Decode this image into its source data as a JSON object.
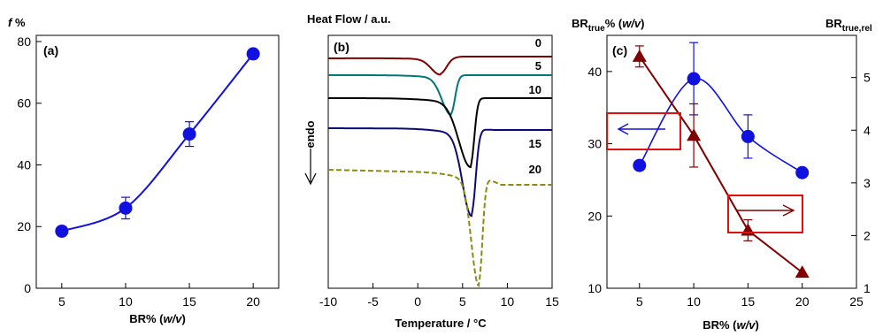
{
  "chart_data": [
    {
      "type": "line",
      "panel_label": "(a)",
      "ylabel_italic": "f",
      "ylabel_rest": " %",
      "xlabel_pre": "BR% (",
      "xlabel_it": "w/v",
      "xlabel_post": ")",
      "xlim": [
        3,
        22
      ],
      "ylim": [
        0,
        82
      ],
      "xticks": [
        5,
        10,
        15,
        20
      ],
      "yticks": [
        0,
        20,
        40,
        60,
        80
      ],
      "series": [
        {
          "color": "#1010e0",
          "x": [
            5,
            10,
            15,
            20
          ],
          "y": [
            18.5,
            26,
            50,
            76
          ],
          "yerr": [
            0,
            3.5,
            4,
            0
          ]
        }
      ]
    },
    {
      "type": "line",
      "panel_label": "(b)",
      "ylabel": "Heat Flow /  a.u.",
      "xlabel": "Temperature / °C",
      "endo_label": "endo",
      "xlim": [
        -10,
        15
      ],
      "xticks": [
        -10,
        -5,
        0,
        5,
        10,
        15
      ],
      "series": [
        {
          "name": "20",
          "color": "#8b8b12"
        },
        {
          "name": "15",
          "color": "#0a0a78"
        },
        {
          "name": "10",
          "color": "#000000"
        },
        {
          "name": "5",
          "color": "#007878"
        },
        {
          "name": "0",
          "color": "#800000"
        }
      ]
    },
    {
      "type": "line",
      "panel_label": "(c)",
      "ylabel_left_main": "BR",
      "ylabel_left_sub": "true",
      "ylabel_left_rest": "% (",
      "ylabel_left_it": "w/v",
      "ylabel_left_post": ")",
      "ylabel_right_main": "BR",
      "ylabel_right_sub": "true,rel",
      "xlabel_pre": "BR% (",
      "xlabel_it": "w/v",
      "xlabel_post": ")",
      "xlim": [
        2,
        25
      ],
      "xticks": [
        5,
        10,
        15,
        20,
        25
      ],
      "ylim_left": [
        10,
        45
      ],
      "yticks_left": [
        10,
        20,
        30,
        40
      ],
      "ylim_right": [
        1,
        5.8
      ],
      "yticks_right": [
        1,
        2,
        3,
        4,
        5
      ],
      "series": [
        {
          "axis": "left",
          "marker": "circle",
          "color": "#1010e0",
          "x": [
            5,
            10,
            15,
            20
          ],
          "y": [
            27,
            39,
            31,
            26
          ],
          "yerr": [
            0,
            5,
            3,
            0
          ]
        },
        {
          "axis": "right",
          "marker": "triangle",
          "color": "#800000",
          "x": [
            5,
            10,
            15,
            20
          ],
          "y": [
            5.4,
            3.9,
            2.1,
            1.3
          ],
          "yerr": [
            0.2,
            0.6,
            0.2,
            0
          ]
        }
      ]
    }
  ]
}
